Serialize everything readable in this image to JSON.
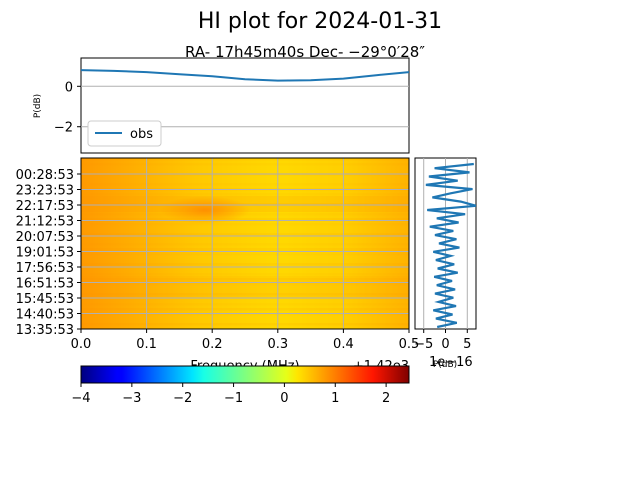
{
  "chart_data": [
    {
      "type": "line",
      "title": "HI plot for 2024-01-31",
      "subtitle": "RA- 17h45m40s Dec- −29°0′28″",
      "ylabel": "P(dB)",
      "ylim": [
        -3.3,
        1.4
      ],
      "yticks": [
        0,
        -2
      ],
      "ytick_labels": [
        "0",
        "−2"
      ],
      "grid": true,
      "legend": {
        "placement": "lower-left",
        "entries": [
          "obs"
        ]
      },
      "series": [
        {
          "name": "obs",
          "x": [
            0.0,
            0.05,
            0.1,
            0.15,
            0.2,
            0.25,
            0.3,
            0.35,
            0.4,
            0.45,
            0.5
          ],
          "values": [
            0.8,
            0.76,
            0.7,
            0.6,
            0.5,
            0.35,
            0.28,
            0.3,
            0.38,
            0.55,
            0.7
          ]
        }
      ],
      "colors": {
        "line": "#1f77b4",
        "grid": "#b0b0b0"
      }
    },
    {
      "type": "heatmap",
      "xlabel": "Frequency (MHz)",
      "offset_label": "+1.42e3",
      "xlim": [
        0.0,
        0.5
      ],
      "xticks": [
        0.0,
        0.1,
        0.2,
        0.3,
        0.4,
        0.5
      ],
      "xtick_labels": [
        "0.0",
        "0.1",
        "0.2",
        "0.3",
        "0.4",
        "0.5"
      ],
      "ytick_labels": [
        "00:28:53",
        "23:23:53",
        "22:17:53",
        "21:12:53",
        "20:07:53",
        "19:01:53",
        "17:56:53",
        "16:51:53",
        "15:45:53",
        "14:40:53",
        "13:35:53"
      ],
      "grid": true,
      "description_values": {
        "colormap": "jet",
        "left_value": 1.2,
        "right_value": 0.6,
        "blob_value": 1.35
      }
    },
    {
      "type": "line",
      "xlabel": "P(dB)",
      "offset_label": "1e−16",
      "xlim": [
        -7,
        7
      ],
      "xticks": [
        -5,
        0,
        5
      ],
      "xtick_labels": [
        "−5",
        "0",
        "5"
      ],
      "grid": true,
      "series": [
        {
          "values": [
            6.5,
            -2.5,
            5.5,
            -3.8,
            2.8,
            -4.5,
            6.2,
            1.2,
            -3.0,
            3.5,
            7.0,
            -4.2,
            4.5,
            -2.0,
            3.0,
            -3.6,
            1.8,
            -2.4,
            2.5,
            -1.5,
            3.2,
            -2.8,
            1.2,
            -2.2,
            2.0,
            -1.8,
            2.8,
            -2.6,
            1.5,
            -2.0,
            2.2,
            -2.4,
            1.8,
            -1.6,
            2.4,
            -2.8,
            1.6,
            -2.2,
            2.6,
            -1.9
          ]
        }
      ],
      "colors": {
        "line": "#1f77b4"
      }
    },
    {
      "type": "colorbar",
      "colormap": "jet",
      "range": [
        -4,
        2.45
      ],
      "ticks": [
        -4,
        -3,
        -2,
        -1,
        0,
        1,
        2
      ],
      "tick_labels": [
        "−4",
        "−3",
        "−2",
        "−1",
        "0",
        "1",
        "2"
      ]
    }
  ]
}
